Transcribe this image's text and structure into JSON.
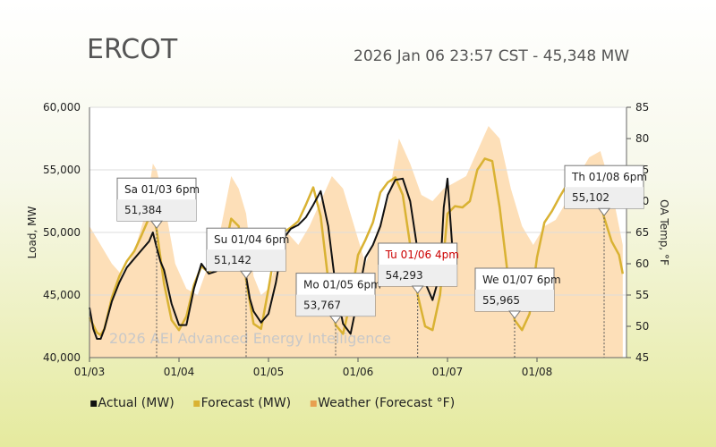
{
  "header": {
    "region": "ERCOT",
    "timestamp": "2026 Jan 06 23:57 CST - 45,348 MW"
  },
  "watermark": "2026 AEI Advanced Energy Intelligence",
  "colors": {
    "actual": "#111111",
    "forecast": "#d9b233",
    "weather_fill": "#fddfb8",
    "weather_line": "#e8a050",
    "red_label": "#cc0000"
  },
  "chart_data": {
    "type": "line",
    "title": "ERCOT",
    "x_range": [
      "01/03 00:00",
      "01/08 24:00"
    ],
    "x_ticks": [
      "01/03",
      "01/04",
      "01/05",
      "01/06",
      "01/07",
      "01/08"
    ],
    "ylabel": "Load, MW",
    "ylim": [
      40000,
      60000
    ],
    "y_ticks": [
      "40,000",
      "45,000",
      "50,000",
      "55,000",
      "60,000"
    ],
    "y2label": "OA Temp, °F",
    "y2lim": [
      45,
      85
    ],
    "y2_ticks": [
      "45",
      "50",
      "55",
      "60",
      "65",
      "70",
      "75",
      "80",
      "85"
    ],
    "grid": "horizontal",
    "legend_position": "bottom",
    "legend": [
      "Actual (MW)",
      "Forecast (MW)",
      "Weather (Forecast °F)"
    ],
    "series": [
      {
        "name": "Actual (MW)",
        "x_hours": [
          0,
          1,
          2,
          3,
          4,
          6,
          8,
          10,
          12,
          14,
          16,
          17,
          18,
          19,
          20,
          22,
          24,
          26,
          28,
          30,
          32,
          34,
          36,
          38,
          40,
          42,
          43,
          44,
          46,
          48,
          50,
          52,
          54,
          56,
          58,
          60,
          62,
          64,
          66,
          68,
          70,
          72,
          74,
          76,
          78,
          80,
          82,
          84,
          86,
          88,
          90,
          92,
          94,
          95,
          96,
          98
        ],
        "values": [
          44000,
          42300,
          41500,
          41500,
          42300,
          44500,
          46000,
          47200,
          47900,
          48600,
          49300,
          50000,
          48800,
          47700,
          47000,
          44300,
          42600,
          42600,
          45500,
          47500,
          46700,
          46900,
          47600,
          50200,
          49600,
          46500,
          44700,
          43700,
          42800,
          43500,
          46000,
          49500,
          50300,
          50600,
          51200,
          52200,
          53300,
          50500,
          45700,
          42700,
          41900,
          44800,
          48000,
          49000,
          50500,
          53000,
          54200,
          54300,
          52500,
          48500,
          46000,
          44600,
          46700,
          52000,
          54300,
          45800
        ]
      },
      {
        "name": "Forecast (MW)",
        "x_hours": [
          0,
          2,
          3,
          4,
          6,
          8,
          10,
          12,
          14,
          16,
          17,
          18,
          20,
          22,
          24,
          26,
          28,
          30,
          32,
          34,
          36,
          38,
          40,
          42,
          44,
          46,
          48,
          50,
          52,
          54,
          56,
          58,
          60,
          62,
          64,
          66,
          68,
          70,
          72,
          74,
          76,
          78,
          80,
          82,
          84,
          86,
          88,
          90,
          92,
          94,
          96,
          98,
          100,
          102,
          104,
          106,
          108,
          110,
          112,
          114,
          116,
          118,
          120,
          122,
          124,
          126,
          128,
          130,
          132,
          134,
          136,
          138,
          140,
          142,
          143
        ],
        "values": [
          43200,
          42000,
          41800,
          42300,
          44800,
          46500,
          47700,
          48500,
          49800,
          51200,
          51400,
          50200,
          45900,
          43000,
          42200,
          43300,
          45800,
          47300,
          46800,
          47400,
          48200,
          51100,
          50500,
          46200,
          42700,
          42300,
          45500,
          49000,
          50000,
          50400,
          50900,
          52200,
          53600,
          51300,
          46200,
          42600,
          41900,
          44500,
          48200,
          49400,
          50800,
          53200,
          54000,
          54400,
          53000,
          49000,
          45000,
          42500,
          42200,
          45000,
          51500,
          52100,
          52000,
          52500,
          55000,
          55900,
          55700,
          52000,
          47000,
          43000,
          42200,
          43500,
          48000,
          50800,
          51700,
          52800,
          53800,
          54500,
          54600,
          55100,
          53600,
          51200,
          49300,
          48200,
          46700
        ]
      },
      {
        "name": "Weather (Forecast °F)",
        "x_hours": [
          0,
          3,
          6,
          9,
          12,
          15,
          17,
          18,
          20,
          23,
          26,
          29,
          32,
          35,
          38,
          40,
          42,
          44,
          46,
          48,
          50,
          53,
          56,
          59,
          62,
          65,
          68,
          71,
          74,
          77,
          80,
          83,
          86,
          89,
          92,
          95,
          98,
          101,
          104,
          107,
          110,
          113,
          116,
          119,
          122,
          125,
          128,
          131,
          134,
          137,
          140,
          143
        ],
        "values": [
          66,
          63,
          60,
          58,
          62,
          68,
          76,
          75,
          70,
          60,
          56,
          55,
          60,
          65,
          74,
          72,
          68,
          58,
          55,
          56,
          60,
          65,
          63,
          66,
          70,
          74,
          72,
          66,
          60,
          65,
          70,
          80,
          76,
          71,
          70,
          72,
          73,
          74,
          78,
          82,
          80,
          72,
          66,
          63,
          66,
          67,
          70,
          74,
          77,
          78,
          72,
          63
        ]
      }
    ],
    "annotations": [
      {
        "label": "Sa 01/03 6pm",
        "value": "51,384",
        "x_hour": 18,
        "red": false
      },
      {
        "label": "Su 01/04 6pm",
        "value": "51,142",
        "x_hour": 42,
        "red": false
      },
      {
        "label": "Mo 01/05 6pm",
        "value": "53,767",
        "x_hour": 66,
        "red": false
      },
      {
        "label": "Tu 01/06 4pm",
        "value": "54,293",
        "x_hour": 88,
        "red": true
      },
      {
        "label": "We 01/07 6pm",
        "value": "55,965",
        "x_hour": 114,
        "red": false
      },
      {
        "label": "Th 01/08 6pm",
        "value": "55,102",
        "x_hour": 138,
        "red": false
      }
    ]
  }
}
